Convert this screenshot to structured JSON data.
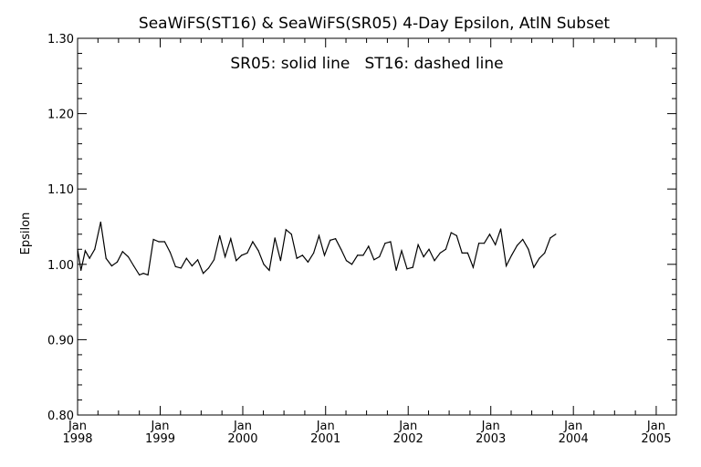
{
  "chart_data": {
    "type": "line",
    "title": "SeaWiFS(ST16) & SeaWiFS(SR05) 4-Day Epsilon, AtlN Subset",
    "annotation": "SR05: solid line   ST16: dashed line",
    "xlabel": "",
    "ylabel": "Epsilon",
    "ylim": [
      0.8,
      1.3
    ],
    "xlim": [
      "1998-01-01",
      "2005-03-31"
    ],
    "y_ticks": [
      "0.80",
      "0.90",
      "1.00",
      "1.10",
      "1.20",
      "1.30"
    ],
    "x_ticks": [
      {
        "month": "Jan",
        "year": "1998",
        "date": "1998-01-01"
      },
      {
        "month": "Jan",
        "year": "1999",
        "date": "1999-01-01"
      },
      {
        "month": "Jan",
        "year": "2000",
        "date": "2000-01-01"
      },
      {
        "month": "Jan",
        "year": "2001",
        "date": "2001-01-01"
      },
      {
        "month": "Jan",
        "year": "2002",
        "date": "2002-01-01"
      },
      {
        "month": "Jan",
        "year": "2003",
        "date": "2003-01-01"
      },
      {
        "month": "Jan",
        "year": "2004",
        "date": "2004-01-01"
      },
      {
        "month": "Jan",
        "year": "2005",
        "date": "2005-01-01"
      }
    ],
    "grid": false,
    "legend": "none",
    "series": [
      {
        "line_style": "solid",
        "color": "#000000",
        "points": [
          [
            "1998-01-01",
            1.02
          ],
          [
            "1998-01-16",
            0.992
          ],
          [
            "1998-02-04",
            1.018
          ],
          [
            "1998-02-23",
            1.008
          ],
          [
            "1998-03-18",
            1.02
          ],
          [
            "1998-04-13",
            1.056
          ],
          [
            "1998-05-07",
            1.008
          ],
          [
            "1998-06-01",
            0.998
          ],
          [
            "1998-06-25",
            1.003
          ],
          [
            "1998-07-19",
            1.017
          ],
          [
            "1998-08-13",
            1.01
          ],
          [
            "1998-09-06",
            0.998
          ],
          [
            "1998-10-01",
            0.986
          ],
          [
            "1998-10-19",
            0.988
          ],
          [
            "1998-11-08",
            0.986
          ],
          [
            "1998-12-02",
            1.033
          ],
          [
            "1998-12-26",
            1.03
          ],
          [
            "1999-01-21",
            1.03
          ],
          [
            "1999-02-14",
            1.016
          ],
          [
            "1999-03-10",
            0.997
          ],
          [
            "1999-04-03",
            0.995
          ],
          [
            "1999-04-27",
            1.008
          ],
          [
            "1999-05-22",
            0.998
          ],
          [
            "1999-06-16",
            1.006
          ],
          [
            "1999-07-10",
            0.988
          ],
          [
            "1999-08-03",
            0.995
          ],
          [
            "1999-08-27",
            1.006
          ],
          [
            "1999-09-21",
            1.038
          ],
          [
            "1999-10-15",
            1.01
          ],
          [
            "1999-11-09",
            1.034
          ],
          [
            "1999-12-03",
            1.005
          ],
          [
            "1999-12-27",
            1.012
          ],
          [
            "2000-01-21",
            1.015
          ],
          [
            "2000-02-14",
            1.03
          ],
          [
            "2000-03-10",
            1.018
          ],
          [
            "2000-04-03",
            1.0
          ],
          [
            "2000-04-27",
            0.992
          ],
          [
            "2000-05-22",
            1.035
          ],
          [
            "2000-06-16",
            1.005
          ],
          [
            "2000-07-10",
            1.046
          ],
          [
            "2000-08-03",
            1.04
          ],
          [
            "2000-08-27",
            1.008
          ],
          [
            "2000-09-21",
            1.012
          ],
          [
            "2000-10-15",
            1.003
          ],
          [
            "2000-11-09",
            1.015
          ],
          [
            "2000-12-03",
            1.038
          ],
          [
            "2000-12-27",
            1.012
          ],
          [
            "2001-01-21",
            1.032
          ],
          [
            "2001-02-14",
            1.034
          ],
          [
            "2001-03-10",
            1.02
          ],
          [
            "2001-04-03",
            1.005
          ],
          [
            "2001-04-27",
            1.0
          ],
          [
            "2001-05-22",
            1.012
          ],
          [
            "2001-06-16",
            1.012
          ],
          [
            "2001-07-10",
            1.024
          ],
          [
            "2001-08-03",
            1.006
          ],
          [
            "2001-08-27",
            1.01
          ],
          [
            "2001-09-21",
            1.028
          ],
          [
            "2001-10-15",
            1.03
          ],
          [
            "2001-11-09",
            0.992
          ],
          [
            "2001-12-03",
            1.018
          ],
          [
            "2001-12-27",
            0.994
          ],
          [
            "2002-01-21",
            0.996
          ],
          [
            "2002-02-14",
            1.026
          ],
          [
            "2002-03-10",
            1.01
          ],
          [
            "2002-04-03",
            1.02
          ],
          [
            "2002-04-27",
            1.005
          ],
          [
            "2002-05-22",
            1.015
          ],
          [
            "2002-06-16",
            1.02
          ],
          [
            "2002-07-10",
            1.042
          ],
          [
            "2002-08-03",
            1.038
          ],
          [
            "2002-08-27",
            1.015
          ],
          [
            "2002-09-21",
            1.015
          ],
          [
            "2002-10-15",
            0.996
          ],
          [
            "2002-11-09",
            1.028
          ],
          [
            "2002-12-03",
            1.028
          ],
          [
            "2002-12-27",
            1.04
          ],
          [
            "2003-01-21",
            1.026
          ],
          [
            "2003-02-14",
            1.047
          ],
          [
            "2003-03-10",
            0.998
          ],
          [
            "2003-04-03",
            1.012
          ],
          [
            "2003-04-27",
            1.025
          ],
          [
            "2003-05-22",
            1.033
          ],
          [
            "2003-06-16",
            1.02
          ],
          [
            "2003-07-10",
            0.996
          ],
          [
            "2003-08-03",
            1.008
          ],
          [
            "2003-08-27",
            1.015
          ],
          [
            "2003-09-21",
            1.035
          ],
          [
            "2003-10-15",
            1.04
          ]
        ]
      }
    ]
  }
}
